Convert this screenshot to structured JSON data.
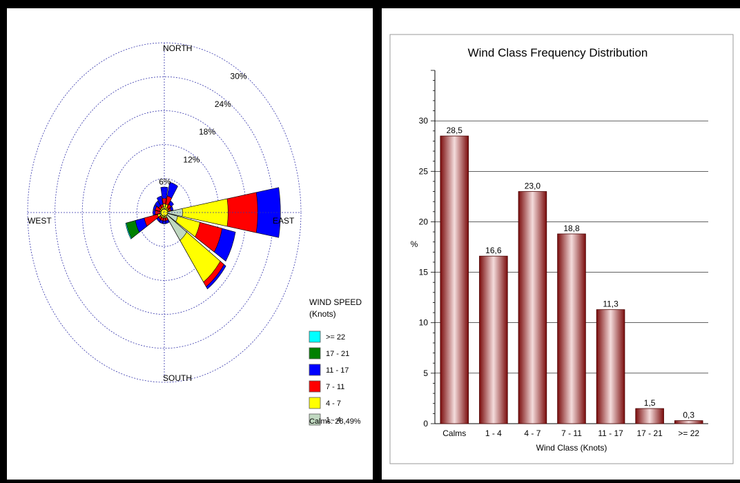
{
  "chart_data": [
    {
      "type": "windrose",
      "directions": [
        "N",
        "NNE",
        "NE",
        "ENE",
        "E",
        "ESE",
        "SE",
        "SSE",
        "S",
        "SSW",
        "SW",
        "WSW",
        "W",
        "WNW",
        "NW",
        "NNW"
      ],
      "compass_labels": {
        "north": "NORTH",
        "east": "EAST",
        "south": "SOUTH",
        "west": "WEST"
      },
      "ring_labels": [
        "6%",
        "12%",
        "18%",
        "24%",
        "30%"
      ],
      "ring_values": [
        6,
        12,
        18,
        24,
        30
      ],
      "legend_title_1": "WIND SPEED",
      "legend_title_2": "(Knots)",
      "calms_text": "Calms: 28,49%",
      "bins": [
        {
          "label": ">= 22",
          "color": "#00ffff"
        },
        {
          "label": "17 - 21",
          "color": "#008000"
        },
        {
          "label": "11 - 17",
          "color": "#0000ff"
        },
        {
          "label": "7 - 11",
          "color": "#ff0000"
        },
        {
          "label": "4 - 7",
          "color": "#ffff00"
        },
        {
          "label": "1 - 4",
          "color": "#c0d8c0"
        }
      ],
      "petals": [
        {
          "dir": "N",
          "cum": [
            0.5,
            1.5,
            2.5,
            4.5
          ]
        },
        {
          "dir": "NNE",
          "cum": [
            0.5,
            1.5,
            3.0,
            5.5
          ]
        },
        {
          "dir": "NE",
          "cum": [
            0.5,
            1.0,
            1.8,
            2.5
          ]
        },
        {
          "dir": "ENE",
          "cum": [
            0.5,
            1.0,
            1.5,
            2.0
          ]
        },
        {
          "dir": "E",
          "cum": [
            4.0,
            14.0,
            20.5,
            25.5
          ]
        },
        {
          "dir": "ESE",
          "cum": [
            3.0,
            8.0,
            13.0,
            16.0
          ]
        },
        {
          "dir": "SE",
          "cum": [
            6.0,
            15.0,
            16.0,
            16.5
          ]
        },
        {
          "dir": "SSE",
          "cum": [
            0.5,
            1.0,
            1.5,
            2.0
          ]
        },
        {
          "dir": "S",
          "cum": [
            0.5,
            1.0,
            1.5,
            2.0
          ]
        },
        {
          "dir": "SSW",
          "cum": [
            0.5,
            1.0,
            1.5,
            2.0
          ]
        },
        {
          "dir": "SW",
          "cum": [
            0.5,
            1.0,
            1.5,
            2.0
          ]
        },
        {
          "dir": "WSW",
          "cum": [
            1.0,
            1.5,
            4.5,
            6.5,
            8.5,
            8.7
          ]
        },
        {
          "dir": "W",
          "cum": [
            0.5,
            1.0,
            2.0,
            2.5
          ]
        },
        {
          "dir": "WNW",
          "cum": [
            0.5,
            1.0,
            2.0,
            2.5
          ]
        },
        {
          "dir": "NW",
          "cum": [
            0.5,
            1.0,
            1.5,
            2.5
          ]
        },
        {
          "dir": "NNW",
          "cum": [
            0.5,
            1.0,
            1.5,
            3.0
          ]
        }
      ]
    },
    {
      "type": "bar",
      "title": "Wind Class Frequency Distribution",
      "xlabel": "Wind Class (Knots)",
      "ylabel": "%",
      "categories": [
        "Calms",
        "1 - 4",
        "4 - 7",
        "7 - 11",
        "11 - 17",
        "17 - 21",
        ">= 22"
      ],
      "values": [
        28.5,
        16.6,
        23.0,
        18.8,
        11.3,
        1.5,
        0.3
      ],
      "value_labels": [
        "28,5",
        "16,6",
        "23,0",
        "18,8",
        "11,3",
        "1,5",
        "0,3"
      ],
      "yticks": [
        "0",
        "5",
        "10",
        "15",
        "20",
        "25",
        "30"
      ],
      "ytick_values": [
        0,
        5,
        10,
        15,
        20,
        25,
        30
      ],
      "ylim": [
        0,
        35
      ],
      "bar_color": "#8b0000"
    }
  ]
}
